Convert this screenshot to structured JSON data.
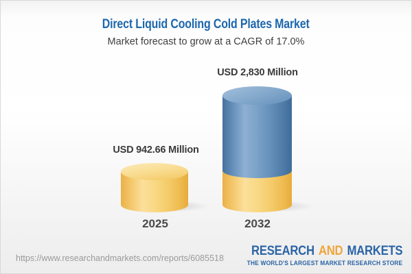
{
  "header": {
    "title": "Direct Liquid Cooling Cold Plates Market",
    "subtitle": "Market forecast to grow at a CAGR of 17.0%"
  },
  "chart_data": {
    "type": "bar",
    "variant": "3d-cylinder",
    "title": "Direct Liquid Cooling Cold Plates Market",
    "subtitle": "Market forecast to grow at a CAGR of 17.0%",
    "categories": [
      "2025",
      "2032"
    ],
    "values": [
      942.66,
      2830
    ],
    "value_labels": [
      "USD 942.66 Million",
      "USD 2,830 Million"
    ],
    "unit": "USD Million",
    "cagr_percent": 17.0,
    "grid": false,
    "legend": false,
    "colors": {
      "bar_2025": "#f7d47f",
      "bar_2032_base_segment": "#f7d47f",
      "bar_2032_growth_segment": "#6691bb"
    },
    "note": "2032 column is stacked visually: yellow base segment equal to the 2025 value with a blue growth segment above it"
  },
  "footer": {
    "url": "https://www.researchandmarkets.com/reports/6085518",
    "logo": {
      "word1": "RESEARCH",
      "word2": "AND",
      "word3": "MARKETS",
      "tagline": "THE WORLD'S LARGEST MARKET RESEARCH STORE",
      "blue": "#2b64a6",
      "orange": "#f0a53c"
    }
  }
}
